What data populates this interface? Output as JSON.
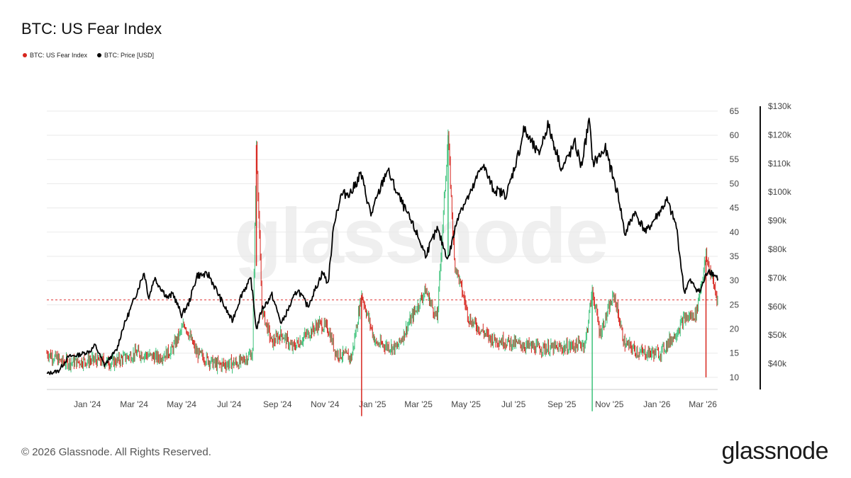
{
  "title": "BTC: US Fear Index",
  "footer": "© 2026 Glassnode. All Rights Reserved.",
  "brand": "glassnode",
  "watermark": "glassnode",
  "colors": {
    "up": "#3cc27a",
    "down": "#d7261e",
    "price": "#000000",
    "threshold": "#e03a3a",
    "grid": "#eaeaea"
  },
  "chart_data": {
    "type": "line",
    "title": "BTC: US Fear Index",
    "legend": [
      {
        "label": "BTC: US Fear Index",
        "color": "#d7261e"
      },
      {
        "label": "BTC: Price [USD]",
        "color": "#000000"
      }
    ],
    "legend_placement": "top-left",
    "grid": true,
    "x_ticks": [
      "Jan '24",
      "Mar '24",
      "May '24",
      "Jul '24",
      "Sep '24",
      "Nov '24",
      "Jan '25",
      "Mar '25",
      "May '25",
      "Jul '25",
      "Sep '25",
      "Nov '25",
      "Jan '26",
      "Mar '26"
    ],
    "x_range": [
      "2023-11-10",
      "2026-03-20"
    ],
    "y_left": {
      "label": "",
      "ticks": [
        "10",
        "15",
        "20",
        "25",
        "30",
        "35",
        "40",
        "45",
        "50",
        "55",
        "60",
        "65"
      ],
      "range": [
        7.5,
        66
      ]
    },
    "y_right": {
      "label": "",
      "ticks": [
        "$40k",
        "$50k",
        "$60k",
        "$70k",
        "$80k",
        "$90k",
        "$100k",
        "$110k",
        "$120k",
        "$130k"
      ],
      "range": [
        31000,
        130000
      ]
    },
    "threshold": {
      "value": 26,
      "style": "dashed"
    },
    "series": [
      {
        "name": "BTC: Price [USD]",
        "axis": "right",
        "points": [
          [
            "2023-11-10",
            36500
          ],
          [
            "2023-11-25",
            37500
          ],
          [
            "2023-12-08",
            42500
          ],
          [
            "2023-12-20",
            43000
          ],
          [
            "2024-01-05",
            44500
          ],
          [
            "2024-01-11",
            46500
          ],
          [
            "2024-01-23",
            39500
          ],
          [
            "2024-02-08",
            45000
          ],
          [
            "2024-02-15",
            52000
          ],
          [
            "2024-02-28",
            61000
          ],
          [
            "2024-03-14",
            72000
          ],
          [
            "2024-03-20",
            63000
          ],
          [
            "2024-03-27",
            70000
          ],
          [
            "2024-04-13",
            63000
          ],
          [
            "2024-04-20",
            64500
          ],
          [
            "2024-05-01",
            57000
          ],
          [
            "2024-05-10",
            61000
          ],
          [
            "2024-05-21",
            71000
          ],
          [
            "2024-06-05",
            71000
          ],
          [
            "2024-06-25",
            60000
          ],
          [
            "2024-07-05",
            55000
          ],
          [
            "2024-07-18",
            65000
          ],
          [
            "2024-07-29",
            69500
          ],
          [
            "2024-08-05",
            52000
          ],
          [
            "2024-08-12",
            59000
          ],
          [
            "2024-08-25",
            64000
          ],
          [
            "2024-09-06",
            54000
          ],
          [
            "2024-09-27",
            66000
          ],
          [
            "2024-10-10",
            60000
          ],
          [
            "2024-10-29",
            72000
          ],
          [
            "2024-11-05",
            68000
          ],
          [
            "2024-11-13",
            90000
          ],
          [
            "2024-11-22",
            99000
          ],
          [
            "2024-12-05",
            100000
          ],
          [
            "2024-12-17",
            106500
          ],
          [
            "2024-12-30",
            92000
          ],
          [
            "2025-01-20",
            108000
          ],
          [
            "2025-02-01",
            100000
          ],
          [
            "2025-02-26",
            86000
          ],
          [
            "2025-03-10",
            78000
          ],
          [
            "2025-03-25",
            87000
          ],
          [
            "2025-04-08",
            76500
          ],
          [
            "2025-04-22",
            93000
          ],
          [
            "2025-05-08",
            100000
          ],
          [
            "2025-05-22",
            110000
          ],
          [
            "2025-06-05",
            101000
          ],
          [
            "2025-06-22",
            99000
          ],
          [
            "2025-07-10",
            116000
          ],
          [
            "2025-07-14",
            122000
          ],
          [
            "2025-08-02",
            113000
          ],
          [
            "2025-08-14",
            123500
          ],
          [
            "2025-09-01",
            108000
          ],
          [
            "2025-09-18",
            117000
          ],
          [
            "2025-09-26",
            109000
          ],
          [
            "2025-10-06",
            125000
          ],
          [
            "2025-10-11",
            110000
          ],
          [
            "2025-10-27",
            115000
          ],
          [
            "2025-11-13",
            98000
          ],
          [
            "2025-11-21",
            85000
          ],
          [
            "2025-12-03",
            93000
          ],
          [
            "2025-12-18",
            86000
          ],
          [
            "2026-01-14",
            97000
          ],
          [
            "2026-01-26",
            88000
          ],
          [
            "2026-02-05",
            65000
          ],
          [
            "2026-02-12",
            69000
          ],
          [
            "2026-02-25",
            65000
          ],
          [
            "2026-03-08",
            73000
          ],
          [
            "2026-03-20",
            70000
          ]
        ]
      },
      {
        "name": "BTC: US Fear Index",
        "axis": "left",
        "points": [
          [
            "2023-11-10",
            15
          ],
          [
            "2023-12-01",
            13
          ],
          [
            "2024-01-10",
            13.5
          ],
          [
            "2024-02-01",
            13
          ],
          [
            "2024-03-05",
            15
          ],
          [
            "2024-04-01",
            14
          ],
          [
            "2024-04-18",
            15.5
          ],
          [
            "2024-05-05",
            21
          ],
          [
            "2024-05-20",
            15
          ],
          [
            "2024-06-15",
            12.5
          ],
          [
            "2024-07-15",
            13
          ],
          [
            "2024-07-31",
            15
          ],
          [
            "2024-08-05",
            58
          ],
          [
            "2024-08-12",
            24
          ],
          [
            "2024-08-25",
            17
          ],
          [
            "2024-09-06",
            19
          ],
          [
            "2024-09-20",
            16
          ],
          [
            "2024-10-10",
            19
          ],
          [
            "2024-10-25",
            21
          ],
          [
            "2024-11-05",
            20
          ],
          [
            "2024-11-15",
            15
          ],
          [
            "2024-12-05",
            14
          ],
          [
            "2024-12-18",
            27
          ],
          [
            "2025-01-05",
            17
          ],
          [
            "2025-02-01",
            16
          ],
          [
            "2025-03-10",
            28
          ],
          [
            "2025-03-25",
            22
          ],
          [
            "2025-04-08",
            60
          ],
          [
            "2025-04-16",
            34
          ],
          [
            "2025-05-05",
            22
          ],
          [
            "2025-06-01",
            18
          ],
          [
            "2025-07-01",
            17
          ],
          [
            "2025-08-01",
            16
          ],
          [
            "2025-09-01",
            16
          ],
          [
            "2025-10-01",
            17
          ],
          [
            "2025-10-10",
            28
          ],
          [
            "2025-10-20",
            19
          ],
          [
            "2025-11-07",
            27
          ],
          [
            "2025-11-20",
            17
          ],
          [
            "2025-12-10",
            15
          ],
          [
            "2026-01-05",
            15
          ],
          [
            "2026-01-25",
            19
          ],
          [
            "2026-02-05",
            22
          ],
          [
            "2026-02-20",
            23
          ],
          [
            "2026-03-05",
            35
          ],
          [
            "2026-03-20",
            26
          ]
        ]
      }
    ]
  }
}
